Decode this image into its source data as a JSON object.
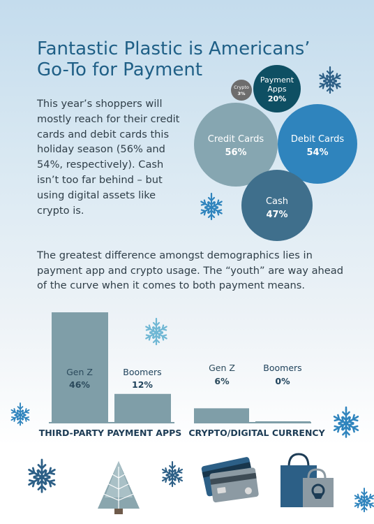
{
  "title_lines": [
    "Fantastic Plastic is Americans’",
    "Go-To for Payment"
  ],
  "intro_text": "This year’s shoppers will mostly reach for their credit cards and debit cards this holiday season (56% and 54%, respectively).  Cash isn’t too far behind – but using digital assets like crypto is.",
  "second_text": "The greatest difference amongst demographics lies in payment app and crypto usage. The “youth” are way ahead of the curve when it comes to both payment means.",
  "colors": {
    "title": "#1f5f86",
    "body_text": "#2f3e48",
    "crypto_bubble": "#6d6d6d",
    "payment_apps_bubble": "#0e4f63",
    "credit_bubble": "#86a6b1",
    "debit_bubble": "#2f84bd",
    "cash_bubble": "#3f6f8c",
    "bar": "#7f9ea8",
    "bar_label_dark": "#2b4a5c",
    "bar_label_light": "#20435c",
    "snowflake_dark": "#2c5f86",
    "snowflake_light": "#6fb7d4"
  },
  "chart_data": [
    {
      "type": "bubble",
      "bubbles": [
        {
          "label": "Crypto",
          "value": 3,
          "pct": "3%"
        },
        {
          "label": "Payment Apps",
          "label_lines": [
            "Payment",
            "Apps"
          ],
          "value": 20,
          "pct": "20%"
        },
        {
          "label": "Credit Cards",
          "value": 56,
          "pct": "56%"
        },
        {
          "label": "Debit Cards",
          "value": 54,
          "pct": "54%"
        },
        {
          "label": "Cash",
          "value": 47,
          "pct": "47%"
        }
      ]
    },
    {
      "type": "bar",
      "category": "THIRD-PARTY PAYMENT APPS",
      "bars": [
        {
          "label": "Gen Z",
          "value": 46,
          "pct": "46%"
        },
        {
          "label": "Boomers",
          "value": 12,
          "pct": "12%"
        }
      ]
    },
    {
      "type": "bar",
      "category": "CRYPTO/DIGITAL CURRENCY",
      "bars": [
        {
          "label": "Gen Z",
          "value": 6,
          "pct": "6%"
        },
        {
          "label": "Boomers",
          "value": 0,
          "pct": "0%"
        }
      ]
    }
  ],
  "icons": [
    "snowflake-icon",
    "christmas-tree-icon",
    "credit-card-icon",
    "shopping-bag-icon"
  ]
}
